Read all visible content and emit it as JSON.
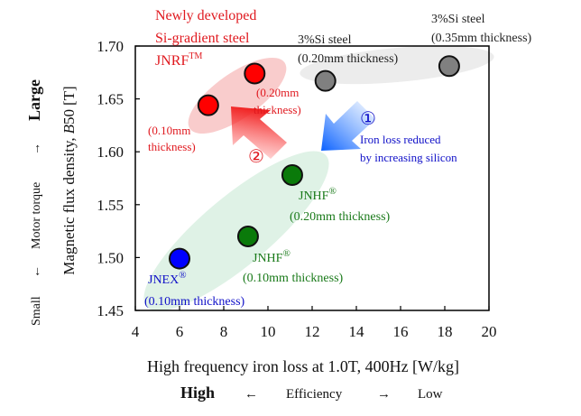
{
  "chart_data": {
    "type": "scatter",
    "title": "",
    "xlabel": "High frequency iron loss at 1.0T, 400Hz [W/kg]",
    "ylabel": "Magnetic flux density, B50 [T]",
    "ylabel_prefix": "Magnetic flux density,",
    "ylabel_var": "B",
    "ylabel_sub": "50",
    "ylabel_unit": "[T]",
    "xlim": [
      4,
      20
    ],
    "ylim": [
      1.45,
      1.7
    ],
    "xticks": [
      4,
      6,
      8,
      10,
      12,
      14,
      16,
      18,
      20
    ],
    "yticks": [
      1.45,
      1.5,
      1.55,
      1.6,
      1.65,
      1.7
    ],
    "ytick_labels": [
      "1.45",
      "1.50",
      "1.55",
      "1.60",
      "1.65",
      "1.70"
    ],
    "grid": false,
    "series": [
      {
        "name": "JNRF (Si-gradient steel)",
        "color": "#ff0000",
        "points": [
          {
            "x": 7.3,
            "y": 1.644,
            "label": "0.10mm"
          },
          {
            "x": 9.4,
            "y": 1.674,
            "label": "0.20mm"
          }
        ]
      },
      {
        "name": "3%Si steel",
        "color": "#808080",
        "points": [
          {
            "x": 12.6,
            "y": 1.667,
            "label": "0.20mm"
          },
          {
            "x": 18.2,
            "y": 1.681,
            "label": "0.35mm"
          }
        ]
      },
      {
        "name": "JNHF",
        "color": "#0a7a0a",
        "points": [
          {
            "x": 11.1,
            "y": 1.578,
            "label": "0.20mm"
          },
          {
            "x": 9.1,
            "y": 1.52,
            "label": "0.10mm"
          }
        ]
      },
      {
        "name": "JNEX",
        "color": "#0000ff",
        "points": [
          {
            "x": 6.0,
            "y": 1.499,
            "label": "0.10mm"
          }
        ]
      }
    ],
    "annotations": {
      "jnrf_title": [
        "Newly developed",
        "Si-gradient steel",
        "JNRF"
      ],
      "jnrf_tm": "TM",
      "jnrf_010": [
        "(0.10mm",
        "thickness)"
      ],
      "jnrf_020": [
        "(0.20mm",
        "thickness)"
      ],
      "si_020": [
        "3%Si steel",
        "(0.20mm thickness)"
      ],
      "si_035": [
        "3%Si steel",
        "(0.35mm thickness)"
      ],
      "jnhf_020": [
        "JNHF",
        "(0.20mm thickness)"
      ],
      "jnhf_010": [
        "JNHF",
        "(0.10mm thickness)"
      ],
      "jnex": [
        "JNEX",
        "(0.10mm thickness)"
      ],
      "reg": "®",
      "arrow1_num": "①",
      "arrow1_text": [
        "Iron loss reduced",
        "by increasing silicon"
      ],
      "arrow2_num": "②"
    },
    "y_side_label": {
      "small": "Small",
      "arrow_left": "←",
      "middle": "Motor torque",
      "arrow_right": "→",
      "large": "Large"
    },
    "x_side_label": {
      "high": "High",
      "arrow_left": "←",
      "middle": "Efficiency",
      "arrow_right": "→",
      "low": "Low"
    },
    "colors": {
      "red": "#e0191f",
      "gray_text": "#222222",
      "green": "#1a7a1a",
      "blue": "#1010c8",
      "axis": "#000000"
    }
  }
}
